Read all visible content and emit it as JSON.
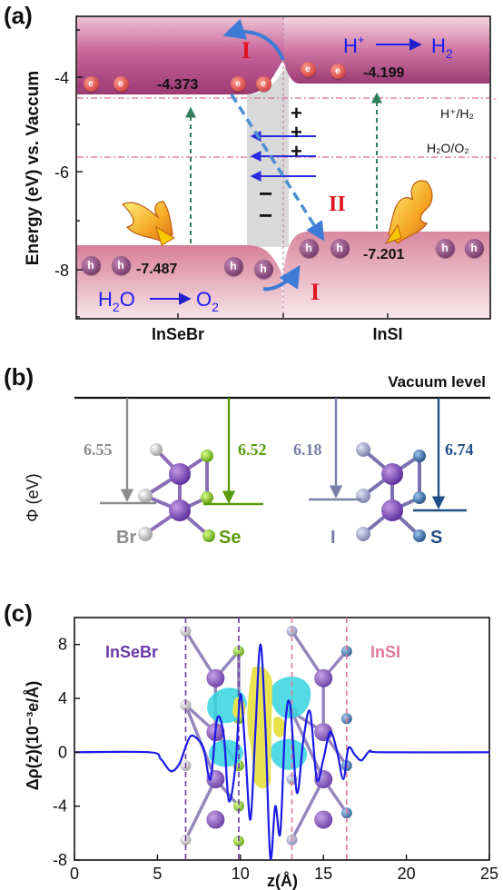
{
  "panel_a": {
    "label": "(a)",
    "ylabel": "Energy (eV) vs. Vaccum",
    "yticks": [
      "-4",
      "-6",
      "-8"
    ],
    "left_name": "InSeBr",
    "right_name": "InSI",
    "cb_left": "-4.373",
    "cb_right": "-4.199",
    "vb_left": "-7.487",
    "vb_right": "-7.201",
    "electron": "e",
    "hole": "h",
    "reaction_top_lhs": "H",
    "reaction_top_lhs_sup": "+",
    "reaction_top_rhs": "H",
    "reaction_top_rhs_sub": "2",
    "reaction_bot_lhs": "H",
    "reaction_bot_lhs_sub": "2",
    "reaction_bot_lhs_tail": "O",
    "reaction_bot_rhs": "O",
    "reaction_bot_rhs_sub": "2",
    "redox_h": "H⁺/H₂",
    "redox_o": "H₂O/O₂",
    "path_one": "I",
    "path_two": "II",
    "plus": "+",
    "minus": "−",
    "colors": {
      "band": "#c45a8a",
      "band_light": "#f2c6d3",
      "electron": "#d03a3a",
      "hole": "#7a2f6b",
      "arrow_blue": "#3d7bd6",
      "dash_green": "#2e7d5b",
      "field": "#2a2ae0",
      "roman": "#e0141e"
    }
  },
  "panel_b": {
    "label": "(b)",
    "ylabel": "Φ (eV)",
    "vacuum": "Vacuum level",
    "items": [
      {
        "value": "6.55",
        "element": "Br",
        "color": "#8c8c8c"
      },
      {
        "value": "6.52",
        "element": "Se",
        "color": "#5a9a0e"
      },
      {
        "value": "6.18",
        "element": "I",
        "color": "#7a7fa8"
      },
      {
        "value": "6.74",
        "element": "S",
        "color": "#1f4e86"
      }
    ]
  },
  "panel_c": {
    "label": "(c)",
    "ylabel": "Δρ(z)(10⁻³e/Å)",
    "xlabel": "z(Å)",
    "left_name": "InSeBr",
    "right_name": "InSI",
    "colors": {
      "left": "#6a3aa8",
      "right": "#e07a9a",
      "line": "#1a1ae6"
    }
  },
  "chart_data": {
    "type": "line",
    "title": "",
    "xlabel": "z(Å)",
    "ylabel": "Δρ(z)(10⁻³e/Å)",
    "xlim": [
      0,
      25
    ],
    "ylim": [
      -8,
      10
    ],
    "xticks": [
      0,
      5,
      10,
      15,
      20,
      25
    ],
    "yticks": [
      -8,
      -4,
      0,
      4,
      8
    ],
    "interface_lines": [
      6.7,
      9.9,
      13.1,
      16.4
    ],
    "series": [
      {
        "x": [
          0,
          4.5,
          5.2,
          5.8,
          6.3,
          6.7,
          7.0,
          7.4,
          7.8,
          8.2,
          8.6,
          9.0,
          9.3,
          9.7,
          10.0,
          10.3,
          10.6,
          10.9,
          11.2,
          11.5,
          11.8,
          12.1,
          12.4,
          12.7,
          13.0,
          13.4,
          13.8,
          14.2,
          14.6,
          15.0,
          15.4,
          15.8,
          16.2,
          16.5,
          16.9,
          17.3,
          17.8,
          18.5,
          25
        ],
        "y": [
          0,
          0,
          -0.5,
          -1.4,
          -0.9,
          0.4,
          1.2,
          1.0,
          0.2,
          -2.0,
          2.5,
          1.2,
          -3.6,
          -1.0,
          4.3,
          0.0,
          -5.0,
          1.5,
          8.0,
          2.0,
          -7.8,
          -4.0,
          -6.0,
          2.0,
          3.5,
          -3.0,
          1.0,
          3.0,
          -2.0,
          -0.5,
          1.5,
          0.2,
          -2.0,
          0.3,
          -0.2,
          -0.6,
          0.1,
          0,
          0
        ]
      }
    ]
  }
}
